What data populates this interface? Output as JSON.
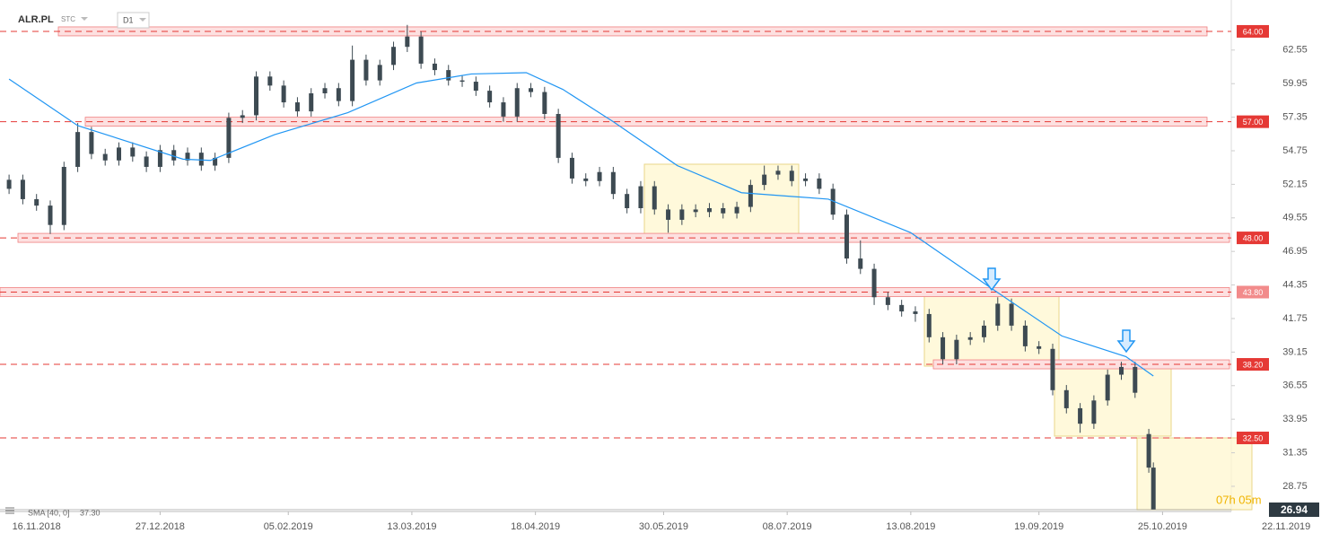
{
  "chart_data": {
    "type": "candlestick",
    "symbol": "ALR.PL",
    "market": "STC",
    "interval": "D1",
    "up_color": "#3d4a52",
    "down_color": "#3d4a52",
    "xlim": [
      -1,
      268
    ],
    "ylim": [
      26.8,
      66.43
    ],
    "xticks": [
      {
        "value": 6,
        "label": "16.11.2018"
      },
      {
        "value": 33,
        "label": "27.12.2018"
      },
      {
        "value": 61,
        "label": "05.02.2019"
      },
      {
        "value": 88,
        "label": "13.03.2019"
      },
      {
        "value": 115,
        "label": "18.04.2019"
      },
      {
        "value": 143,
        "label": "30.05.2019"
      },
      {
        "value": 170,
        "label": "08.07.2019"
      },
      {
        "value": 197,
        "label": "13.08.2019"
      },
      {
        "value": 225,
        "label": "19.09.2019"
      },
      {
        "value": 252,
        "label": "25.10.2019"
      },
      {
        "value": 279,
        "label": "22.11.2019"
      }
    ],
    "yticks": [
      28.75,
      31.35,
      33.95,
      36.55,
      39.15,
      41.75,
      44.35,
      46.95,
      49.55,
      52.15,
      54.75,
      57.35,
      59.95,
      62.55
    ],
    "x": [
      0,
      3,
      6,
      9,
      12,
      15,
      18,
      21,
      24,
      27,
      30,
      33,
      36,
      39,
      42,
      45,
      48,
      51,
      54,
      57,
      60,
      63,
      66,
      69,
      72,
      75,
      78,
      81,
      84,
      87,
      90,
      93,
      96,
      99,
      102,
      105,
      108,
      111,
      114,
      117,
      120,
      123,
      126,
      129,
      132,
      135,
      138,
      141,
      144,
      147,
      150,
      153,
      156,
      159,
      162,
      165,
      168,
      171,
      174,
      177,
      180,
      183,
      186,
      189,
      192,
      195,
      198,
      201,
      204,
      207,
      210,
      213,
      216,
      219,
      222,
      225,
      228,
      231,
      234,
      237,
      240,
      243,
      246,
      249,
      250
    ],
    "open": [
      51.8,
      52.5,
      51.0,
      50.5,
      49.0,
      53.5,
      56.2,
      54.5,
      54.0,
      55.0,
      54.3,
      53.5,
      54.8,
      54.0,
      54.6,
      53.6,
      54.2,
      57.3,
      57.5,
      60.5,
      59.8,
      58.5,
      57.8,
      59.2,
      59.6,
      58.6,
      61.8,
      60.2,
      61.4,
      62.8,
      63.6,
      61.5,
      61.0,
      60.2,
      60.1,
      59.4,
      58.5,
      57.4,
      59.6,
      59.3,
      57.6,
      54.2,
      52.6,
      52.4,
      53.1,
      51.4,
      50.3,
      52.0,
      50.2,
      49.4,
      50.2,
      50.0,
      50.3,
      49.9,
      50.4,
      52.1,
      52.9,
      53.2,
      52.4,
      52.6,
      51.8,
      49.8,
      46.4,
      45.6,
      43.4,
      42.8,
      42.3,
      42.1,
      40.3,
      38.6,
      40.1,
      40.3,
      41.2,
      42.9,
      41.2,
      39.6,
      39.4,
      36.2,
      34.8,
      33.6,
      35.4,
      37.4,
      38.0,
      32.8,
      30.2
    ],
    "high": [
      52.9,
      52.9,
      51.4,
      50.9,
      53.9,
      56.9,
      56.6,
      54.9,
      55.4,
      55.4,
      54.7,
      55.2,
      55.2,
      55.0,
      55.0,
      54.6,
      57.7,
      57.9,
      60.9,
      60.9,
      60.2,
      58.9,
      59.6,
      60.0,
      60.0,
      62.9,
      62.2,
      61.8,
      63.2,
      64.5,
      64.0,
      61.9,
      61.4,
      60.6,
      60.5,
      59.8,
      58.9,
      60.0,
      60.0,
      59.7,
      58.0,
      54.6,
      53.0,
      53.5,
      53.5,
      51.8,
      52.4,
      52.4,
      50.6,
      50.6,
      50.6,
      50.7,
      50.7,
      50.8,
      52.5,
      53.6,
      53.6,
      53.6,
      53.0,
      53.0,
      52.2,
      50.2,
      47.8,
      46.0,
      43.8,
      43.2,
      42.7,
      42.5,
      40.7,
      40.5,
      40.7,
      41.6,
      43.4,
      43.3,
      41.6,
      40.0,
      39.8,
      36.6,
      35.2,
      35.8,
      37.8,
      38.4,
      38.4,
      33.2,
      30.6
    ],
    "low": [
      51.4,
      50.6,
      50.1,
      48.3,
      48.6,
      53.1,
      54.1,
      53.6,
      53.6,
      53.9,
      53.1,
      53.1,
      53.6,
      53.6,
      53.2,
      53.2,
      53.8,
      56.9,
      57.1,
      59.4,
      58.1,
      57.4,
      57.4,
      58.8,
      58.2,
      58.2,
      59.8,
      59.8,
      61.0,
      62.4,
      61.1,
      60.6,
      59.8,
      59.7,
      59.0,
      58.1,
      57.0,
      57.0,
      58.9,
      57.2,
      53.8,
      52.2,
      52.0,
      52.0,
      51.0,
      49.9,
      49.9,
      49.8,
      48.4,
      49.0,
      49.6,
      49.6,
      49.5,
      49.5,
      50.0,
      51.7,
      52.5,
      52.0,
      52.0,
      51.4,
      49.4,
      46.0,
      45.2,
      42.8,
      42.4,
      41.9,
      41.5,
      39.9,
      38.2,
      38.2,
      39.7,
      39.9,
      40.8,
      40.8,
      39.2,
      39.0,
      35.8,
      34.4,
      32.9,
      33.2,
      35.0,
      37.0,
      35.6,
      29.8,
      26.94
    ],
    "close": [
      52.5,
      51.0,
      50.5,
      49.0,
      53.5,
      56.2,
      54.5,
      54.0,
      55.0,
      54.3,
      53.5,
      54.8,
      54.0,
      54.6,
      53.6,
      54.2,
      57.3,
      57.5,
      60.5,
      59.8,
      58.5,
      57.8,
      59.2,
      59.6,
      58.6,
      61.8,
      60.2,
      61.4,
      62.8,
      63.6,
      61.5,
      61.0,
      60.2,
      60.1,
      59.4,
      58.5,
      57.4,
      59.6,
      59.3,
      57.6,
      54.2,
      52.6,
      52.4,
      53.1,
      51.4,
      50.3,
      52.0,
      50.2,
      49.4,
      50.2,
      50.0,
      50.3,
      49.9,
      50.4,
      52.1,
      52.9,
      53.2,
      52.4,
      52.6,
      51.8,
      49.8,
      46.4,
      45.6,
      43.4,
      42.8,
      42.3,
      42.1,
      40.3,
      38.6,
      40.1,
      40.3,
      41.2,
      42.9,
      41.2,
      39.6,
      39.4,
      36.2,
      34.8,
      33.6,
      35.4,
      37.4,
      38.0,
      36.0,
      30.2,
      26.94
    ],
    "sma": {
      "name": "SMA [40, 0]",
      "color": "#2196f3",
      "last_label": "37.30",
      "x": [
        0,
        15,
        38,
        44,
        58,
        74,
        89,
        101,
        113,
        121,
        132,
        146,
        160,
        179,
        197,
        215,
        230,
        244,
        250
      ],
      "values": [
        60.3,
        56.7,
        54.1,
        54.0,
        56.0,
        57.7,
        60.0,
        60.7,
        60.8,
        59.5,
        57.0,
        53.6,
        51.5,
        51.0,
        48.4,
        44.0,
        40.4,
        38.8,
        37.3
      ]
    },
    "levels": [
      {
        "value": 64,
        "label": "64.00"
      },
      {
        "value": 57,
        "label": "57.00"
      },
      {
        "value": 48,
        "label": "48.00"
      },
      {
        "value": 43.8,
        "label": "43.80"
      },
      {
        "value": 38.2,
        "label": "38.20"
      },
      {
        "value": 32.5,
        "label": "32.50"
      }
    ],
    "level_color": "#e53935",
    "last_price": {
      "value": 26.94,
      "label": "26.94"
    },
    "timer": "07h 05m"
  }
}
